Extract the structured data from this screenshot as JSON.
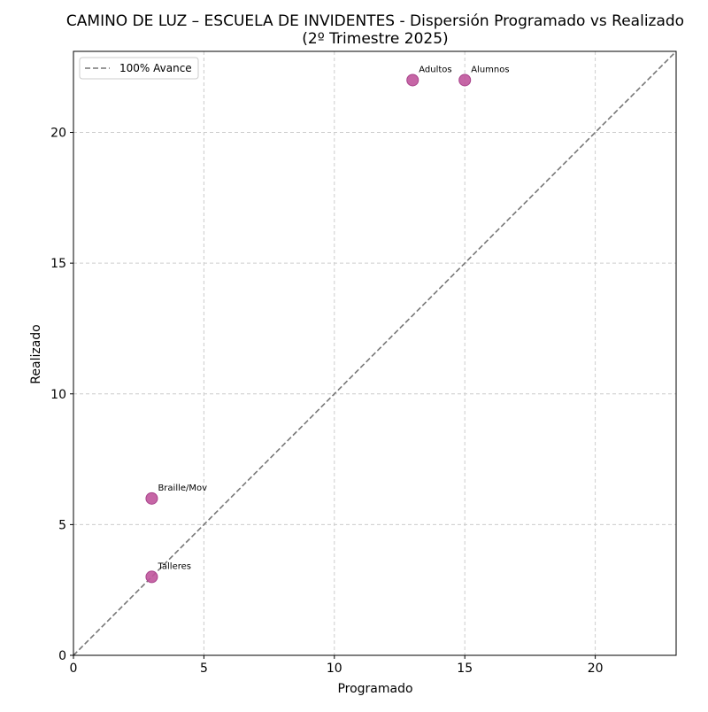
{
  "chart_data": {
    "type": "scatter",
    "title": "CAMINO DE LUZ – ESCUELA DE INVIDENTES - Dispersión Programado vs Realizado",
    "subtitle": "(2º Trimestre 2025)",
    "xlabel": "Programado",
    "ylabel": "Realizado",
    "xlim": [
      0,
      23.1
    ],
    "ylim": [
      0,
      23.1
    ],
    "xticks": [
      0,
      5,
      10,
      15,
      20
    ],
    "yticks": [
      0,
      5,
      10,
      15,
      20
    ],
    "grid": true,
    "legend_position": "top-left",
    "point_color": "#c0559c",
    "reference_line": {
      "name": "100% Avance",
      "from": [
        0,
        0
      ],
      "to": [
        23.1,
        23.1
      ],
      "color": "#777777",
      "style": "dashed"
    },
    "points": [
      {
        "label": "Alumnos",
        "x": 15,
        "y": 22
      },
      {
        "label": "Adultos",
        "x": 13,
        "y": 22
      },
      {
        "label": "Braille/Mov",
        "x": 3,
        "y": 6
      },
      {
        "label": "Talleres",
        "x": 3,
        "y": 3
      }
    ]
  }
}
